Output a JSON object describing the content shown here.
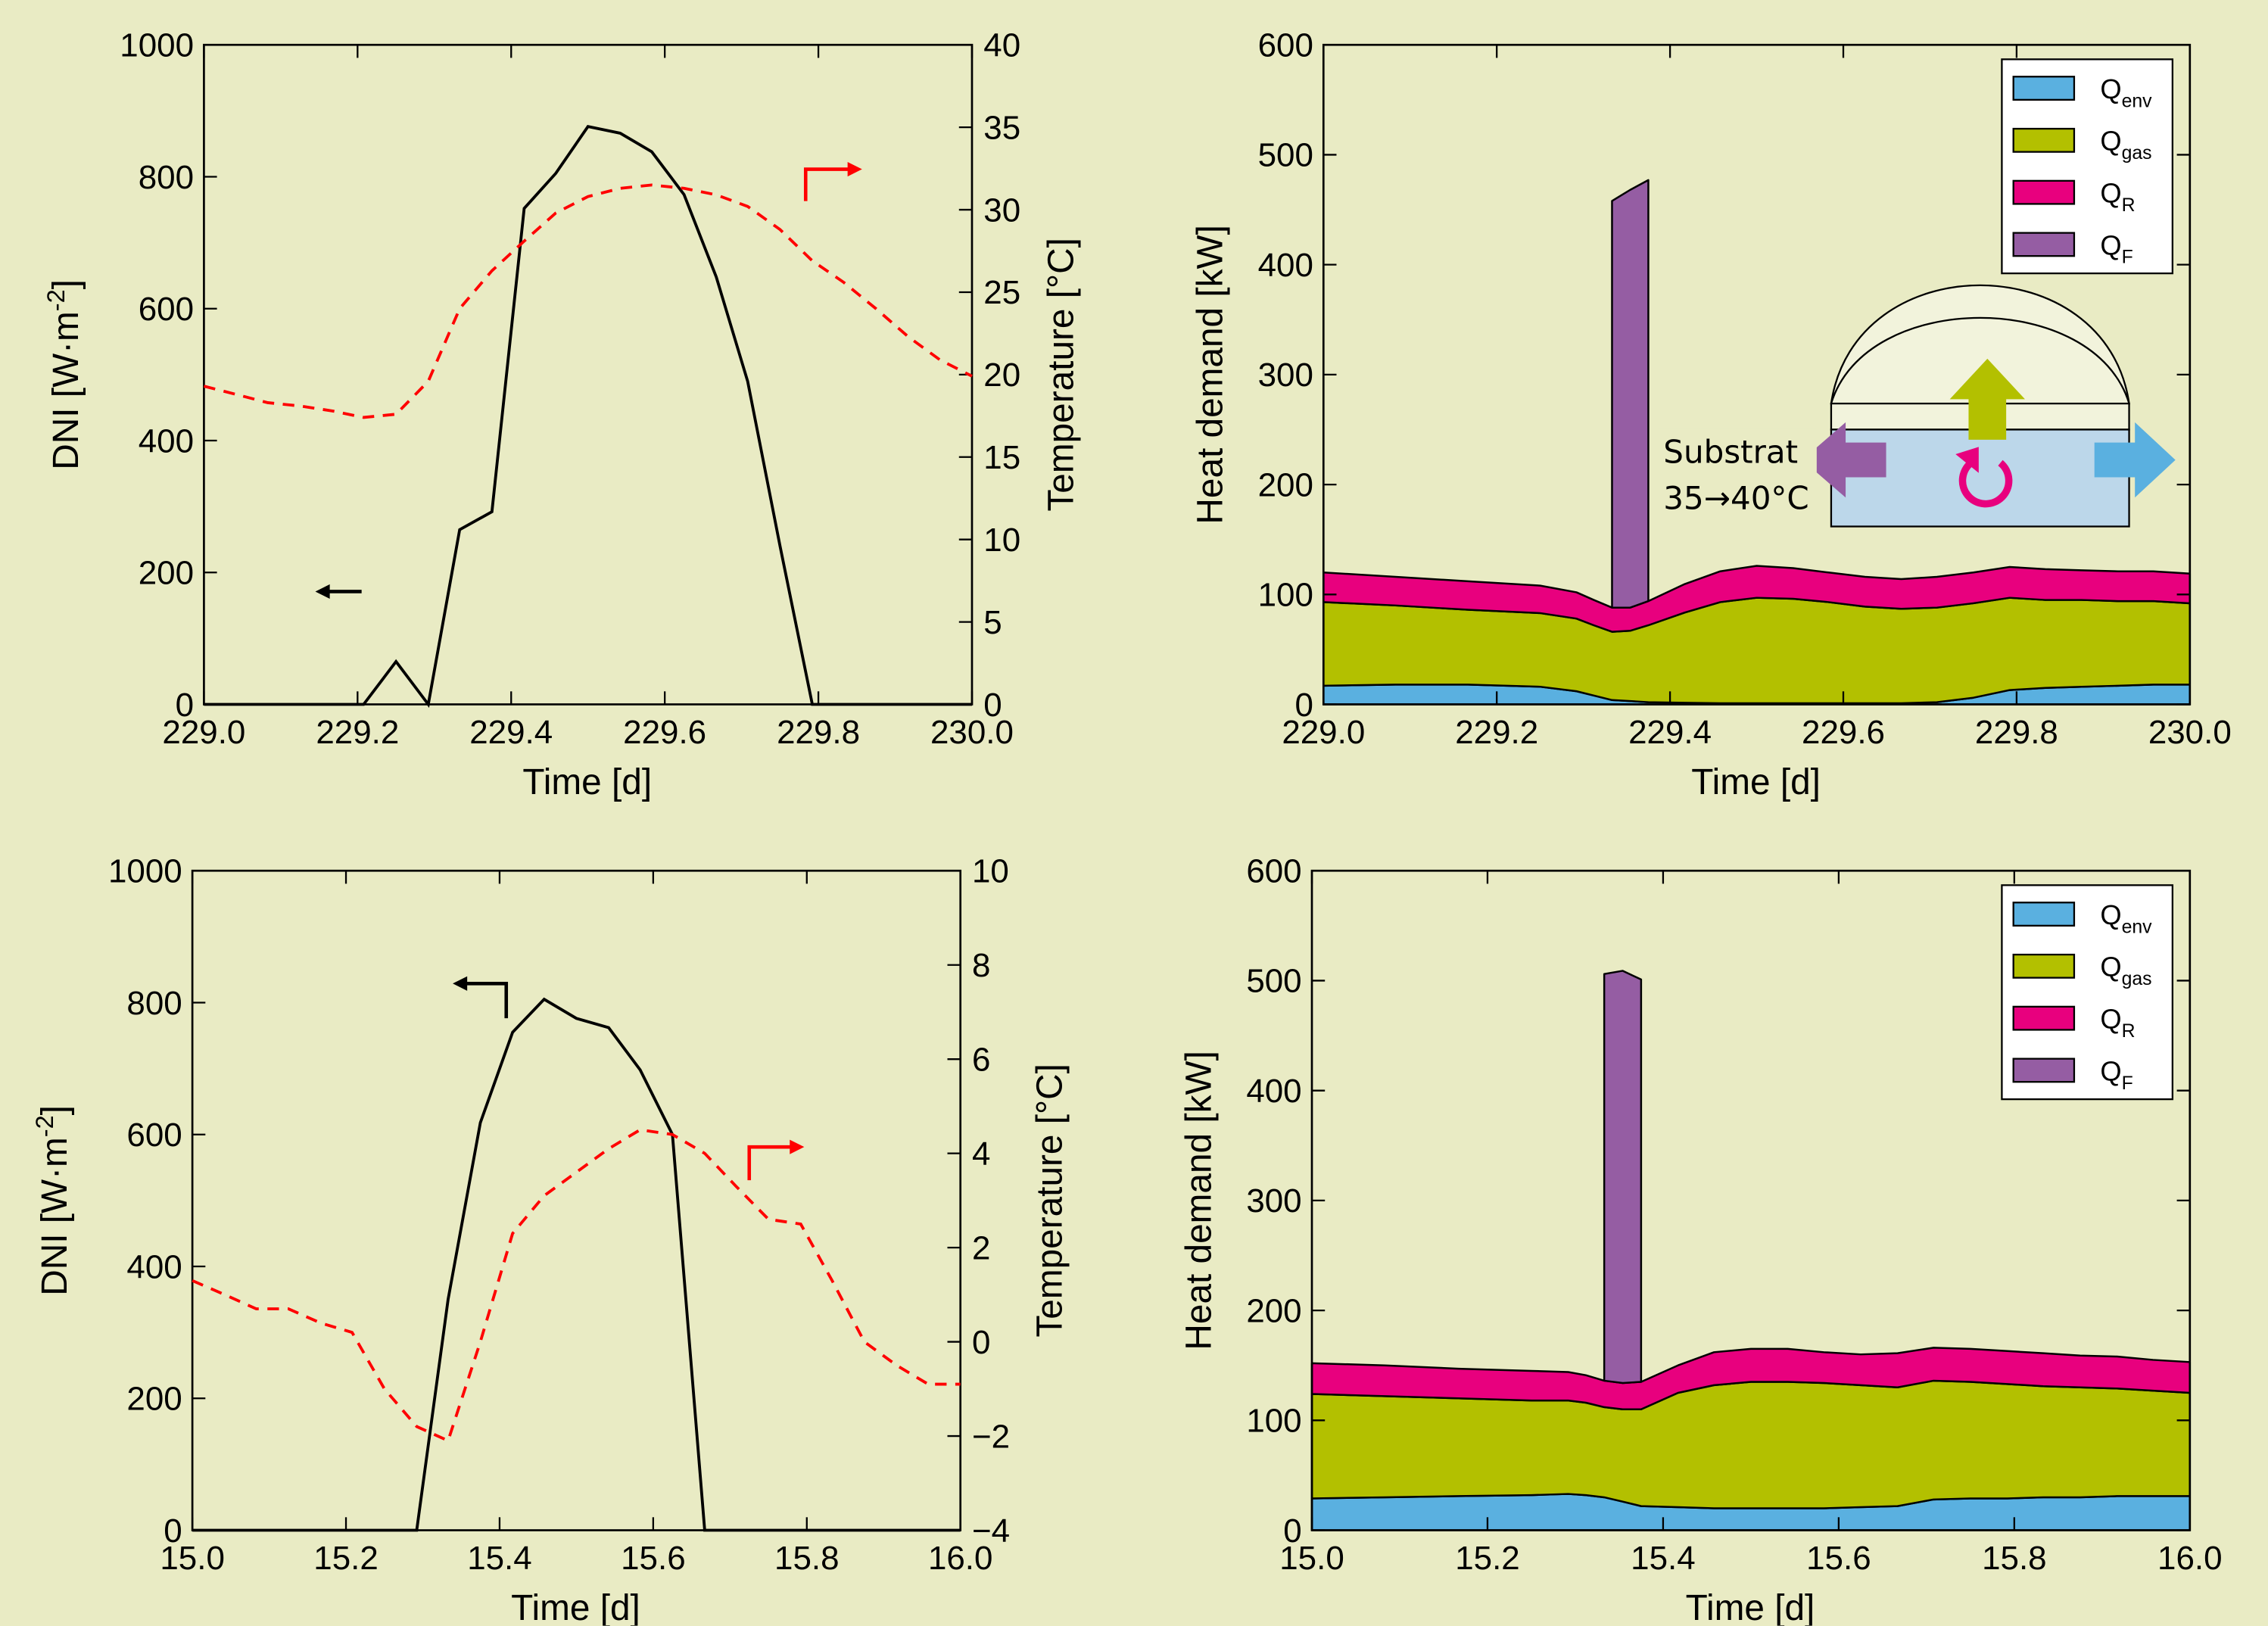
{
  "colors": {
    "background": "#e9ebc4",
    "dni": "#000000",
    "temperature": "#ff0000",
    "Q_env": "#5ab0e0",
    "Q_gas": "#b3c000",
    "Q_R": "#e8007e",
    "Q_F": "#955da3",
    "inset_upper": "#f2f3dc",
    "inset_lower": "#bcd7ea"
  },
  "chart_data": [
    {
      "type": "line",
      "panel": "top-left",
      "xlabel": "Time [d]",
      "ylabel": "DNI [W·m",
      "ylabel_sup": "-2",
      "ylabel_end": "]",
      "y2label": "Temperature [°C]",
      "xlim": [
        229.0,
        230.0
      ],
      "ylim": [
        0,
        1000
      ],
      "y2lim": [
        0,
        40
      ],
      "xticks": [
        "229.0",
        "229.2",
        "229.4",
        "229.6",
        "229.8",
        "230.0"
      ],
      "yticks": [
        "0",
        "200",
        "400",
        "600",
        "800",
        "1000"
      ],
      "y2ticks": [
        "0",
        "5",
        "10",
        "15",
        "20",
        "25",
        "30",
        "35",
        "40"
      ],
      "series": [
        {
          "axis": "left",
          "style": "solid",
          "x": [
            229.0,
            229.208,
            229.25,
            229.292,
            229.333,
            229.375,
            229.417,
            229.458,
            229.5,
            229.542,
            229.583,
            229.625,
            229.667,
            229.708,
            229.75,
            229.792,
            230.0
          ],
          "y": [
            0,
            0,
            65,
            0,
            265,
            292,
            752,
            805,
            876,
            866,
            838,
            773,
            648,
            490,
            240,
            0,
            0
          ]
        },
        {
          "axis": "right",
          "style": "dashed",
          "x": [
            229.0,
            229.042,
            229.083,
            229.125,
            229.167,
            229.208,
            229.25,
            229.292,
            229.333,
            229.375,
            229.417,
            229.458,
            229.5,
            229.542,
            229.583,
            229.625,
            229.667,
            229.708,
            229.75,
            229.792,
            229.833,
            229.875,
            229.917,
            229.958,
            230.0
          ],
          "y": [
            19.3,
            18.8,
            18.3,
            18.1,
            17.8,
            17.4,
            17.6,
            19.6,
            24.0,
            26.3,
            28.1,
            29.8,
            30.8,
            31.3,
            31.5,
            31.3,
            30.9,
            30.2,
            28.8,
            26.9,
            25.6,
            24.0,
            22.3,
            20.9,
            19.9
          ]
        }
      ]
    },
    {
      "type": "area",
      "panel": "top-right",
      "xlabel": "Time [d]",
      "ylabel": "Heat demand [kW]",
      "xlim": [
        229.0,
        230.0
      ],
      "ylim": [
        0,
        600
      ],
      "xticks": [
        "229.0",
        "229.2",
        "229.4",
        "229.6",
        "229.8",
        "230.0"
      ],
      "yticks": [
        "0",
        "100",
        "200",
        "300",
        "400",
        "500",
        "600"
      ],
      "legend": "top-right",
      "x": [
        229.0,
        229.083,
        229.167,
        229.25,
        229.292,
        229.312,
        229.333,
        229.354,
        229.375,
        229.417,
        229.458,
        229.5,
        229.542,
        229.583,
        229.625,
        229.667,
        229.708,
        229.75,
        229.792,
        229.833,
        229.875,
        229.917,
        229.958,
        230.0
      ],
      "series": [
        {
          "name": "Q",
          "sub": "env",
          "values": [
            17,
            18,
            18,
            16,
            12,
            8,
            4,
            3,
            2,
            1.5,
            1,
            1,
            1,
            1,
            1,
            1,
            2,
            6,
            13,
            15,
            16,
            17,
            18,
            18
          ]
        },
        {
          "name": "Q",
          "sub": "gas",
          "values": [
            76,
            72,
            68,
            67,
            66,
            64,
            62,
            64,
            70,
            82,
            92,
            96,
            95,
            92,
            88,
            86,
            86,
            86,
            84,
            80,
            79,
            77,
            76,
            74
          ]
        },
        {
          "name": "Q",
          "sub": "R",
          "values": [
            27,
            26,
            26,
            25,
            24,
            23,
            22,
            21,
            22,
            26,
            28,
            29,
            28,
            27,
            27,
            27,
            28,
            28,
            28,
            28,
            27,
            27,
            27,
            27
          ]
        },
        {
          "name": "Q",
          "sub": "F",
          "values": [
            0,
            0,
            0,
            0,
            0,
            0,
            370,
            380,
            383,
            0,
            0,
            0,
            0,
            0,
            0,
            0,
            0,
            0,
            0,
            0,
            0,
            0,
            0,
            0
          ]
        }
      ]
    },
    {
      "type": "line",
      "panel": "bottom-left",
      "xlabel": "Time [d]",
      "ylabel": "DNI [W·m",
      "ylabel_sup": "-2",
      "ylabel_end": "]",
      "y2label": "Temperature [°C]",
      "xlim": [
        15.0,
        16.0
      ],
      "ylim": [
        0,
        1000
      ],
      "y2lim": [
        -4,
        10
      ],
      "xticks": [
        "15.0",
        "15.2",
        "15.4",
        "15.6",
        "15.8",
        "16.0"
      ],
      "yticks": [
        "0",
        "200",
        "400",
        "600",
        "800",
        "1000"
      ],
      "y2ticks": [
        "−4",
        "−2",
        "0",
        "2",
        "4",
        "6",
        "8",
        "10"
      ],
      "series": [
        {
          "axis": "left",
          "style": "solid",
          "x": [
            15.0,
            15.292,
            15.333,
            15.375,
            15.417,
            15.458,
            15.5,
            15.542,
            15.583,
            15.625,
            15.667,
            16.0
          ],
          "y": [
            0,
            0,
            350,
            618,
            755,
            805,
            776,
            762,
            698,
            600,
            0,
            0
          ]
        },
        {
          "axis": "right",
          "style": "dashed",
          "x": [
            15.0,
            15.042,
            15.083,
            15.125,
            15.167,
            15.208,
            15.25,
            15.292,
            15.333,
            15.375,
            15.417,
            15.458,
            15.5,
            15.542,
            15.583,
            15.625,
            15.667,
            15.708,
            15.75,
            15.792,
            15.833,
            15.875,
            15.917,
            15.958,
            16.0
          ],
          "y": [
            1.3,
            1.0,
            0.7,
            0.7,
            0.4,
            0.2,
            -1.0,
            -1.8,
            -2.1,
            0.0,
            2.3,
            3.1,
            3.6,
            4.1,
            4.5,
            4.4,
            4.0,
            3.3,
            2.6,
            2.5,
            1.3,
            0.0,
            -0.5,
            -0.9,
            -0.9
          ]
        }
      ]
    },
    {
      "type": "area",
      "panel": "bottom-right",
      "xlabel": "Time [d]",
      "ylabel": "Heat demand [kW]",
      "xlim": [
        15.0,
        16.0
      ],
      "ylim": [
        0,
        600
      ],
      "xticks": [
        "15.0",
        "15.2",
        "15.4",
        "15.6",
        "15.8",
        "16.0"
      ],
      "yticks": [
        "0",
        "100",
        "200",
        "300",
        "400",
        "500",
        "600"
      ],
      "legend": "top-right",
      "x": [
        15.0,
        15.083,
        15.167,
        15.25,
        15.292,
        15.312,
        15.333,
        15.354,
        15.375,
        15.417,
        15.458,
        15.5,
        15.542,
        15.583,
        15.625,
        15.667,
        15.708,
        15.75,
        15.792,
        15.833,
        15.875,
        15.917,
        15.958,
        16.0
      ],
      "series": [
        {
          "name": "Q",
          "sub": "env",
          "values": [
            29,
            30,
            31,
            32,
            33,
            32,
            30,
            26,
            22,
            21,
            20,
            20,
            20,
            20,
            21,
            22,
            28,
            29,
            29,
            30,
            30,
            31,
            31,
            31
          ]
        },
        {
          "name": "Q",
          "sub": "gas",
          "values": [
            95,
            92,
            89,
            86,
            85,
            84,
            82,
            84,
            88,
            104,
            112,
            115,
            115,
            114,
            111,
            108,
            108,
            106,
            104,
            101,
            100,
            98,
            96,
            94
          ]
        },
        {
          "name": "Q",
          "sub": "R",
          "values": [
            28,
            28,
            27,
            27,
            26,
            25,
            24,
            24,
            25,
            25,
            30,
            30,
            30,
            28,
            28,
            31,
            30,
            30,
            30,
            30,
            29,
            29,
            28,
            28
          ]
        },
        {
          "name": "Q",
          "sub": "F",
          "values": [
            0,
            0,
            0,
            0,
            0,
            0,
            370,
            375,
            366,
            0,
            0,
            0,
            0,
            0,
            0,
            0,
            0,
            0,
            0,
            0,
            0,
            0,
            0,
            0
          ]
        }
      ]
    }
  ],
  "inset": {
    "label_line1": "Substrat",
    "label_line2": "35→40°C"
  }
}
